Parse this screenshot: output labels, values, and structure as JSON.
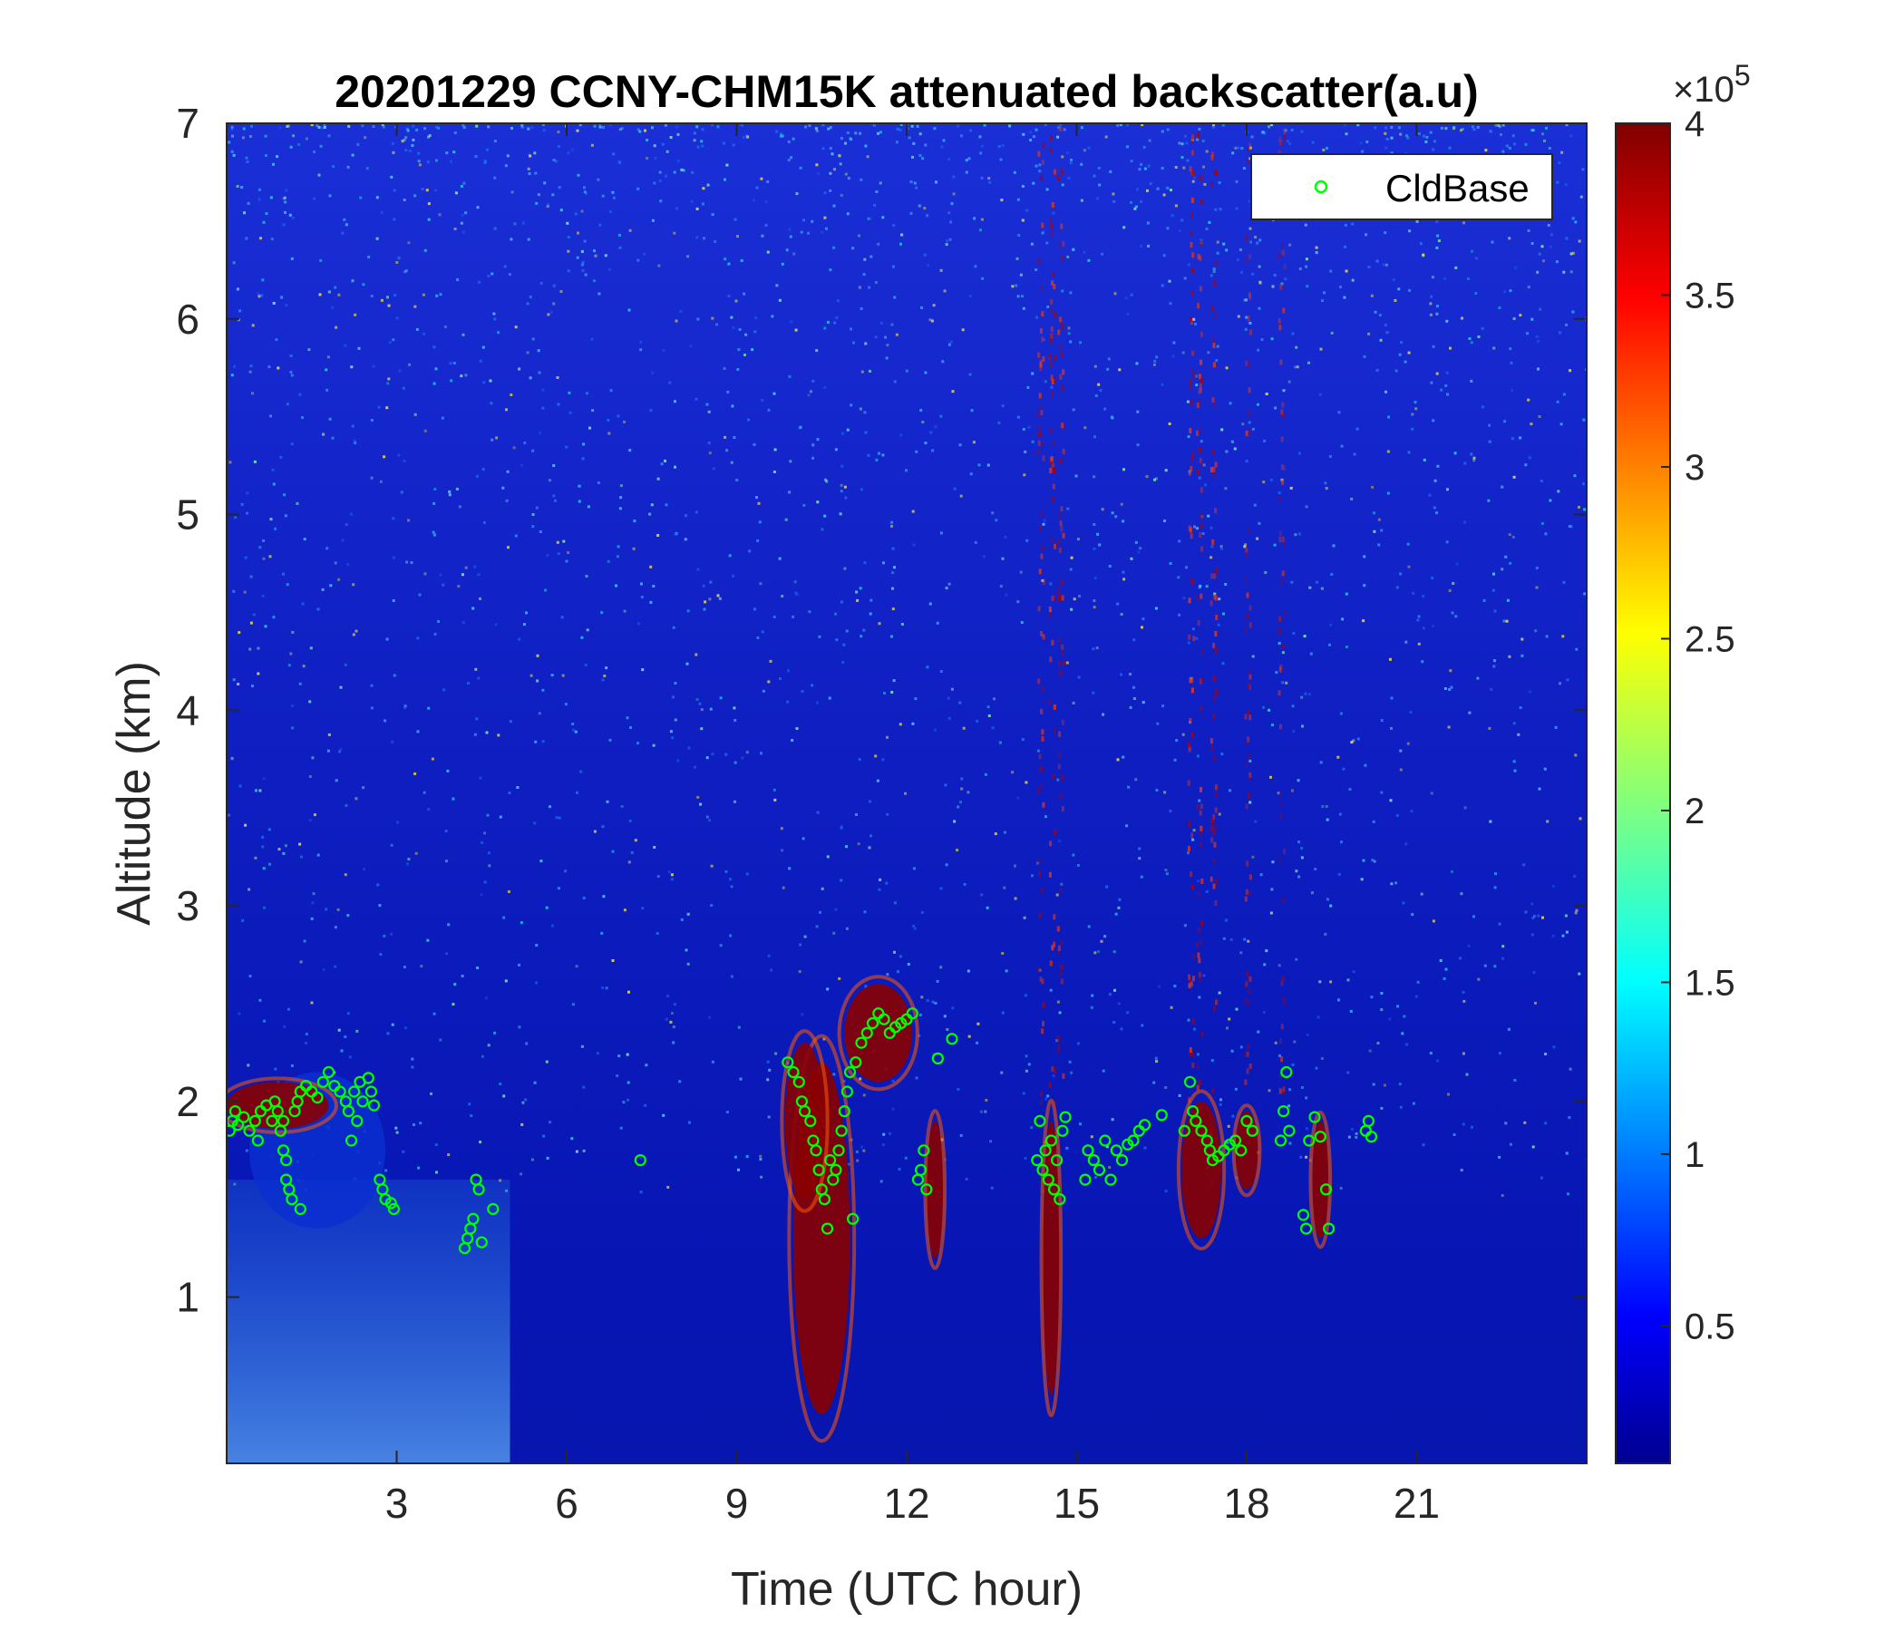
{
  "chart_data": {
    "type": "heatmap",
    "title": "20201229 CCNY-CHM15K attenuated backscatter(a.u)",
    "xlabel": "Time (UTC hour)",
    "ylabel": "Altitude (km)",
    "xlim": [
      0,
      24
    ],
    "ylim": [
      0.15,
      7
    ],
    "x_ticks": [
      3,
      6,
      9,
      12,
      15,
      18,
      21
    ],
    "x_tick_labels": [
      "3",
      "6",
      "9",
      "12",
      "15",
      "18",
      "21"
    ],
    "y_ticks": [
      1,
      2,
      3,
      4,
      5,
      6,
      7
    ],
    "y_tick_labels": [
      "1",
      "2",
      "3",
      "4",
      "5",
      "6",
      "7"
    ],
    "colormap": "jet",
    "colorbar": {
      "range": [
        0.1,
        4
      ],
      "ticks": [
        0.5,
        1,
        1.5,
        2,
        2.5,
        3,
        3.5,
        4
      ],
      "tick_labels": [
        "0.5",
        "1",
        "1.5",
        "2",
        "2.5",
        "3",
        "3.5",
        "4"
      ],
      "multiplier_base": "×10",
      "multiplier_exponent": "5"
    },
    "legend": {
      "position": "top-right",
      "entries": [
        {
          "name": "CldBase",
          "marker": "circle",
          "color": "#00ff00"
        }
      ]
    },
    "series": [
      {
        "name": "CldBase",
        "type": "scatter",
        "color": "#00ff00",
        "points": [
          [
            0.05,
            1.85
          ],
          [
            0.1,
            1.9
          ],
          [
            0.15,
            1.95
          ],
          [
            0.2,
            1.88
          ],
          [
            0.3,
            1.92
          ],
          [
            0.4,
            1.85
          ],
          [
            0.5,
            1.9
          ],
          [
            0.55,
            1.8
          ],
          [
            0.6,
            1.95
          ],
          [
            0.7,
            1.98
          ],
          [
            0.8,
            1.9
          ],
          [
            0.85,
            2.0
          ],
          [
            0.9,
            1.95
          ],
          [
            0.95,
            1.85
          ],
          [
            1.0,
            1.9
          ],
          [
            1.0,
            1.75
          ],
          [
            1.05,
            1.7
          ],
          [
            1.05,
            1.6
          ],
          [
            1.1,
            1.55
          ],
          [
            1.15,
            1.5
          ],
          [
            1.2,
            1.95
          ],
          [
            1.25,
            2.0
          ],
          [
            1.3,
            1.45
          ],
          [
            1.3,
            2.05
          ],
          [
            1.4,
            2.08
          ],
          [
            1.5,
            2.05
          ],
          [
            1.6,
            2.02
          ],
          [
            1.7,
            2.1
          ],
          [
            1.8,
            2.15
          ],
          [
            1.9,
            2.08
          ],
          [
            2.0,
            2.05
          ],
          [
            2.1,
            2.0
          ],
          [
            2.15,
            1.95
          ],
          [
            2.2,
            1.8
          ],
          [
            2.25,
            2.05
          ],
          [
            2.3,
            1.9
          ],
          [
            2.35,
            2.1
          ],
          [
            2.4,
            2.0
          ],
          [
            2.5,
            2.12
          ],
          [
            2.55,
            2.05
          ],
          [
            2.6,
            1.98
          ],
          [
            2.7,
            1.6
          ],
          [
            2.75,
            1.55
          ],
          [
            2.8,
            1.5
          ],
          [
            2.9,
            1.48
          ],
          [
            2.95,
            1.45
          ],
          [
            4.2,
            1.25
          ],
          [
            4.25,
            1.3
          ],
          [
            4.3,
            1.35
          ],
          [
            4.35,
            1.4
          ],
          [
            4.4,
            1.6
          ],
          [
            4.45,
            1.55
          ],
          [
            4.5,
            1.28
          ],
          [
            4.7,
            1.45
          ],
          [
            7.3,
            1.7
          ],
          [
            9.9,
            2.2
          ],
          [
            10.0,
            2.15
          ],
          [
            10.1,
            2.1
          ],
          [
            10.15,
            2.0
          ],
          [
            10.2,
            1.95
          ],
          [
            10.3,
            1.9
          ],
          [
            10.35,
            1.8
          ],
          [
            10.4,
            1.75
          ],
          [
            10.45,
            1.65
          ],
          [
            10.5,
            1.55
          ],
          [
            10.55,
            1.5
          ],
          [
            10.6,
            1.35
          ],
          [
            10.65,
            1.7
          ],
          [
            10.7,
            1.6
          ],
          [
            10.75,
            1.65
          ],
          [
            10.8,
            1.75
          ],
          [
            10.85,
            1.85
          ],
          [
            10.9,
            1.95
          ],
          [
            10.95,
            2.05
          ],
          [
            11.0,
            2.15
          ],
          [
            11.05,
            1.4
          ],
          [
            11.1,
            2.2
          ],
          [
            11.2,
            2.3
          ],
          [
            11.3,
            2.35
          ],
          [
            11.4,
            2.4
          ],
          [
            11.5,
            2.45
          ],
          [
            11.6,
            2.42
          ],
          [
            11.7,
            2.35
          ],
          [
            11.8,
            2.38
          ],
          [
            11.9,
            2.4
          ],
          [
            12.0,
            2.42
          ],
          [
            12.1,
            2.45
          ],
          [
            12.2,
            1.6
          ],
          [
            12.25,
            1.65
          ],
          [
            12.3,
            1.75
          ],
          [
            12.35,
            1.55
          ],
          [
            12.55,
            2.22
          ],
          [
            12.8,
            2.32
          ],
          [
            14.3,
            1.7
          ],
          [
            14.35,
            1.9
          ],
          [
            14.4,
            1.65
          ],
          [
            14.45,
            1.75
          ],
          [
            14.5,
            1.6
          ],
          [
            14.55,
            1.8
          ],
          [
            14.6,
            1.55
          ],
          [
            14.65,
            1.7
          ],
          [
            14.7,
            1.5
          ],
          [
            14.75,
            1.85
          ],
          [
            14.8,
            1.92
          ],
          [
            15.15,
            1.6
          ],
          [
            15.2,
            1.75
          ],
          [
            15.3,
            1.7
          ],
          [
            15.4,
            1.65
          ],
          [
            15.5,
            1.8
          ],
          [
            15.6,
            1.6
          ],
          [
            15.7,
            1.75
          ],
          [
            15.8,
            1.7
          ],
          [
            15.9,
            1.78
          ],
          [
            16.0,
            1.8
          ],
          [
            16.1,
            1.85
          ],
          [
            16.2,
            1.88
          ],
          [
            16.5,
            1.93
          ],
          [
            16.9,
            1.85
          ],
          [
            17.0,
            2.1
          ],
          [
            17.05,
            1.95
          ],
          [
            17.1,
            1.9
          ],
          [
            17.2,
            1.85
          ],
          [
            17.3,
            1.8
          ],
          [
            17.35,
            1.75
          ],
          [
            17.4,
            1.7
          ],
          [
            17.5,
            1.72
          ],
          [
            17.6,
            1.75
          ],
          [
            17.7,
            1.78
          ],
          [
            17.8,
            1.8
          ],
          [
            17.9,
            1.75
          ],
          [
            18.0,
            1.9
          ],
          [
            18.1,
            1.85
          ],
          [
            18.6,
            1.8
          ],
          [
            18.65,
            1.95
          ],
          [
            18.7,
            2.15
          ],
          [
            18.75,
            1.85
          ],
          [
            19.0,
            1.42
          ],
          [
            19.05,
            1.35
          ],
          [
            19.1,
            1.8
          ],
          [
            19.2,
            1.92
          ],
          [
            19.3,
            1.82
          ],
          [
            19.4,
            1.55
          ],
          [
            19.45,
            1.35
          ],
          [
            20.1,
            1.85
          ],
          [
            20.15,
            1.9
          ],
          [
            20.2,
            1.82
          ]
        ]
      }
    ]
  }
}
